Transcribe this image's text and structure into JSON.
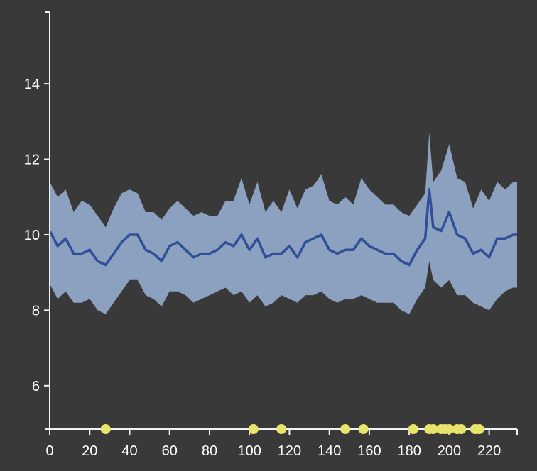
{
  "chart_data": {
    "type": "line",
    "title": "",
    "xlabel": "",
    "ylabel": "",
    "xlim": [
      0,
      234
    ],
    "ylim": [
      4.85,
      15.9
    ],
    "x_ticks": [
      0,
      20,
      40,
      60,
      80,
      100,
      120,
      140,
      160,
      180,
      200,
      220
    ],
    "y_ticks": [
      6,
      8,
      10,
      12,
      14
    ],
    "grid": false,
    "legend": "none",
    "colors": {
      "background": "#393939",
      "band": "#8ca0c0",
      "line": "#2f4f96",
      "events": "#e8e36a",
      "axis": "#f2f2f2"
    },
    "series": [
      {
        "type": "line",
        "x": [
          0,
          4,
          8,
          12,
          16,
          20,
          24,
          28,
          32,
          36,
          40,
          44,
          48,
          52,
          56,
          60,
          64,
          68,
          72,
          76,
          80,
          84,
          88,
          92,
          96,
          100,
          104,
          108,
          112,
          116,
          120,
          124,
          128,
          132,
          136,
          140,
          144,
          148,
          152,
          156,
          160,
          164,
          168,
          172,
          176,
          180,
          184,
          188,
          190,
          192,
          196,
          200,
          204,
          208,
          212,
          216,
          220,
          224,
          228,
          232,
          234
        ],
        "y": [
          10.1,
          9.7,
          9.9,
          9.5,
          9.5,
          9.6,
          9.3,
          9.2,
          9.5,
          9.8,
          10.0,
          10.0,
          9.6,
          9.5,
          9.3,
          9.7,
          9.8,
          9.6,
          9.4,
          9.5,
          9.5,
          9.6,
          9.8,
          9.7,
          10.0,
          9.6,
          9.9,
          9.4,
          9.5,
          9.5,
          9.7,
          9.4,
          9.8,
          9.9,
          10.0,
          9.6,
          9.5,
          9.6,
          9.6,
          9.9,
          9.7,
          9.6,
          9.5,
          9.5,
          9.3,
          9.2,
          9.6,
          9.9,
          11.2,
          10.2,
          10.1,
          10.6,
          10.0,
          9.9,
          9.5,
          9.6,
          9.4,
          9.9,
          9.9,
          10.0,
          10.0
        ]
      },
      {
        "type": "area",
        "x": [
          0,
          4,
          8,
          12,
          16,
          20,
          24,
          28,
          32,
          36,
          40,
          44,
          48,
          52,
          56,
          60,
          64,
          68,
          72,
          76,
          80,
          84,
          88,
          92,
          96,
          100,
          104,
          108,
          112,
          116,
          120,
          124,
          128,
          132,
          136,
          140,
          144,
          148,
          152,
          156,
          160,
          164,
          168,
          172,
          176,
          180,
          184,
          188,
          190,
          192,
          196,
          200,
          204,
          208,
          212,
          216,
          220,
          224,
          228,
          232,
          234
        ],
        "y_upper": [
          11.4,
          11.0,
          11.2,
          10.6,
          10.9,
          10.8,
          10.5,
          10.2,
          10.7,
          11.1,
          11.2,
          11.1,
          10.6,
          10.6,
          10.4,
          10.7,
          10.9,
          10.7,
          10.5,
          10.6,
          10.5,
          10.5,
          10.9,
          10.9,
          11.5,
          10.8,
          11.4,
          10.6,
          10.9,
          10.6,
          11.2,
          10.7,
          11.2,
          11.3,
          11.6,
          10.9,
          10.8,
          11.0,
          10.8,
          11.5,
          11.2,
          11.0,
          10.8,
          10.8,
          10.6,
          10.5,
          10.8,
          11.1,
          12.7,
          11.4,
          11.7,
          12.4,
          11.5,
          11.4,
          10.7,
          11.2,
          10.9,
          11.4,
          11.2,
          11.4,
          11.4
        ],
        "y_lower": [
          8.7,
          8.3,
          8.5,
          8.2,
          8.2,
          8.3,
          8.0,
          7.9,
          8.2,
          8.5,
          8.8,
          8.8,
          8.4,
          8.3,
          8.1,
          8.5,
          8.5,
          8.4,
          8.2,
          8.3,
          8.4,
          8.5,
          8.6,
          8.4,
          8.5,
          8.2,
          8.4,
          8.1,
          8.2,
          8.4,
          8.3,
          8.2,
          8.4,
          8.4,
          8.5,
          8.3,
          8.2,
          8.3,
          8.3,
          8.4,
          8.3,
          8.2,
          8.2,
          8.2,
          8.0,
          7.9,
          8.3,
          8.6,
          9.3,
          8.8,
          8.6,
          8.8,
          8.4,
          8.4,
          8.2,
          8.1,
          8.0,
          8.3,
          8.5,
          8.6,
          8.6
        ]
      }
    ],
    "events": [
      28,
      102,
      116,
      148,
      157,
      182,
      190,
      192,
      196,
      198,
      200,
      204,
      206,
      213,
      215
    ]
  }
}
